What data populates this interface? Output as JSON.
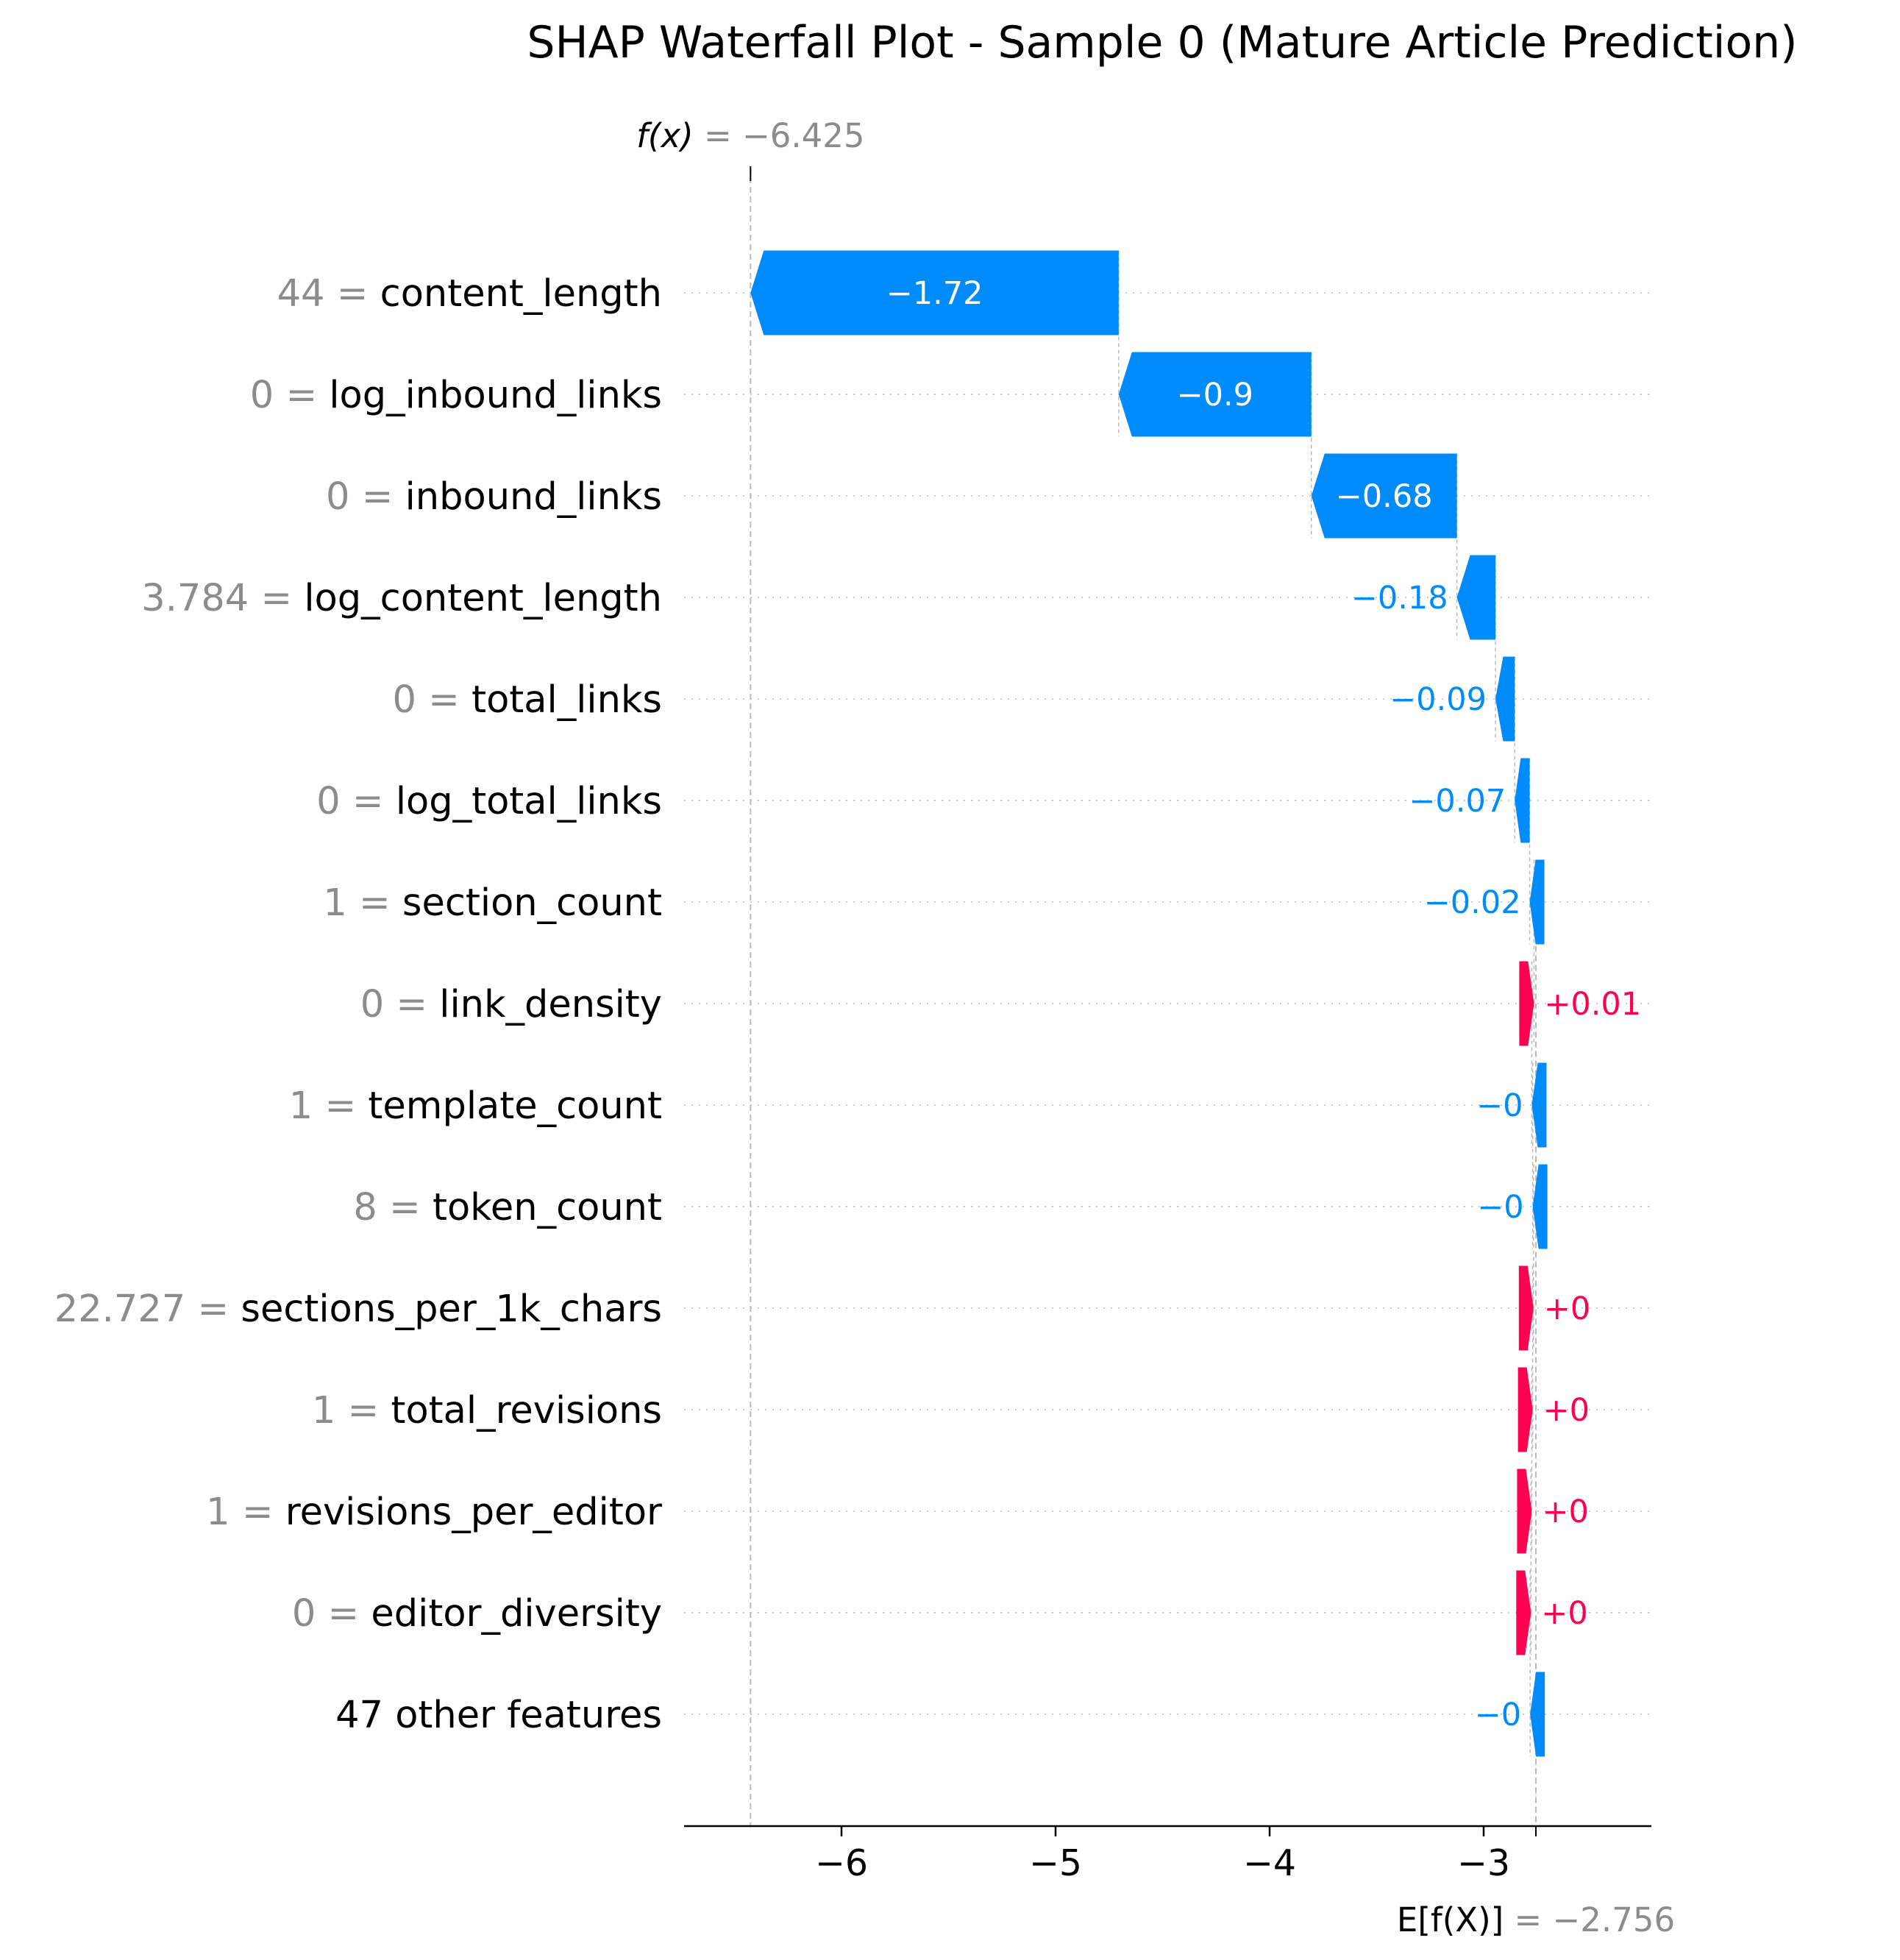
{
  "chart_data": {
    "type": "waterfall",
    "title": "SHAP Waterfall Plot - Sample 0 (Mature Article Prediction)",
    "base_value": -2.756,
    "base_label_fn": "E[f(X)]",
    "base_label_value": "= −2.756",
    "output_value": -6.425,
    "output_label_fn": "f(x)",
    "output_label_value": "= −6.425",
    "xlim": [
      -6.7,
      -2.2
    ],
    "xticks": [
      -6,
      -5,
      -4,
      -3
    ],
    "xtick_labels": [
      "−6",
      "−5",
      "−4",
      "−3"
    ],
    "grid": "horizontal dotted",
    "colors": {
      "negative": "#008bfb",
      "positive": "#ff0051",
      "value_text": "#8c8c8c",
      "line": "#bbbbbb"
    },
    "features": [
      {
        "value": "44",
        "name": "content_length",
        "shap": -1.72,
        "label": "−1.72"
      },
      {
        "value": "0",
        "name": "log_inbound_links",
        "shap": -0.9,
        "label": "−0.9"
      },
      {
        "value": "0",
        "name": "inbound_links",
        "shap": -0.68,
        "label": "−0.68"
      },
      {
        "value": "3.784",
        "name": "log_content_length",
        "shap": -0.18,
        "label": "−0.18"
      },
      {
        "value": "0",
        "name": "total_links",
        "shap": -0.09,
        "label": "−0.09"
      },
      {
        "value": "0",
        "name": "log_total_links",
        "shap": -0.07,
        "label": "−0.07"
      },
      {
        "value": "1",
        "name": "section_count",
        "shap": -0.02,
        "label": "−0.02"
      },
      {
        "value": "0",
        "name": "link_density",
        "shap": 0.01,
        "label": "+0.01"
      },
      {
        "value": "1",
        "name": "template_count",
        "shap": -0.004,
        "label": "−0"
      },
      {
        "value": "8",
        "name": "token_count",
        "shap": -0.004,
        "label": "−0"
      },
      {
        "value": "22.727",
        "name": "sections_per_1k_chars",
        "shap": 0.004,
        "label": "+0"
      },
      {
        "value": "1",
        "name": "total_revisions",
        "shap": 0.004,
        "label": "+0"
      },
      {
        "value": "1",
        "name": "revisions_per_editor",
        "shap": 0.004,
        "label": "+0"
      },
      {
        "value": "0",
        "name": "editor_diversity",
        "shap": 0.004,
        "label": "+0"
      },
      {
        "value": "",
        "name": "47 other features",
        "shap": -0.004,
        "label": "−0"
      }
    ]
  }
}
